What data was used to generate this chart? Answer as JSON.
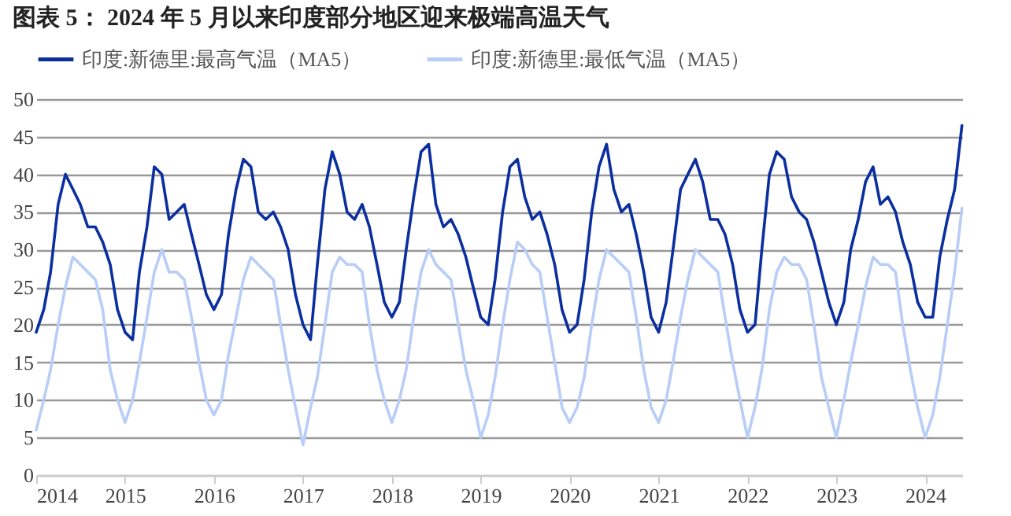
{
  "chart_data": {
    "type": "line",
    "title": "图表 5： 2024 年 5 月以来印度部分地区迎来极端高温天气",
    "x": [
      "2014-01",
      "2014-02",
      "2014-03",
      "2014-04",
      "2014-05",
      "2014-06",
      "2014-07",
      "2014-08",
      "2014-09",
      "2014-10",
      "2014-11",
      "2014-12",
      "2015-01",
      "2015-02",
      "2015-03",
      "2015-04",
      "2015-05",
      "2015-06",
      "2015-07",
      "2015-08",
      "2015-09",
      "2015-10",
      "2015-11",
      "2015-12",
      "2016-01",
      "2016-02",
      "2016-03",
      "2016-04",
      "2016-05",
      "2016-06",
      "2016-07",
      "2016-08",
      "2016-09",
      "2016-10",
      "2016-11",
      "2016-12",
      "2017-01",
      "2017-02",
      "2017-03",
      "2017-04",
      "2017-05",
      "2017-06",
      "2017-07",
      "2017-08",
      "2017-09",
      "2017-10",
      "2017-11",
      "2017-12",
      "2018-01",
      "2018-02",
      "2018-03",
      "2018-04",
      "2018-05",
      "2018-06",
      "2018-07",
      "2018-08",
      "2018-09",
      "2018-10",
      "2018-11",
      "2018-12",
      "2019-01",
      "2019-02",
      "2019-03",
      "2019-04",
      "2019-05",
      "2019-06",
      "2019-07",
      "2019-08",
      "2019-09",
      "2019-10",
      "2019-11",
      "2019-12",
      "2020-01",
      "2020-02",
      "2020-03",
      "2020-04",
      "2020-05",
      "2020-06",
      "2020-07",
      "2020-08",
      "2020-09",
      "2020-10",
      "2020-11",
      "2020-12",
      "2021-01",
      "2021-02",
      "2021-03",
      "2021-04",
      "2021-05",
      "2021-06",
      "2021-07",
      "2021-08",
      "2021-09",
      "2021-10",
      "2021-11",
      "2021-12",
      "2022-01",
      "2022-02",
      "2022-03",
      "2022-04",
      "2022-05",
      "2022-06",
      "2022-07",
      "2022-08",
      "2022-09",
      "2022-10",
      "2022-11",
      "2022-12",
      "2023-01",
      "2023-02",
      "2023-03",
      "2023-04",
      "2023-05",
      "2023-06",
      "2023-07",
      "2023-08",
      "2023-09",
      "2023-10",
      "2023-11",
      "2023-12",
      "2024-01",
      "2024-02",
      "2024-03",
      "2024-04",
      "2024-05",
      "2024-05-31"
    ],
    "series": [
      {
        "name": "印度:新德里:最高气温（MA5）",
        "color": "#0b2f9f",
        "values": [
          19,
          22,
          27,
          36,
          40,
          38,
          36,
          33,
          33,
          31,
          28,
          22,
          19,
          18,
          27,
          33,
          41,
          40,
          34,
          35,
          36,
          32,
          28,
          24,
          22,
          24,
          32,
          38,
          42,
          41,
          35,
          34,
          35,
          33,
          30,
          24,
          20,
          18,
          28,
          38,
          43,
          40,
          35,
          34,
          36,
          33,
          28,
          23,
          21,
          23,
          30,
          37,
          43,
          44,
          36,
          33,
          34,
          32,
          29,
          25,
          21,
          20,
          26,
          35,
          41,
          42,
          37,
          34,
          35,
          32,
          28,
          22,
          19,
          20,
          26,
          35,
          41,
          44,
          38,
          35,
          36,
          32,
          27,
          21,
          19,
          23,
          30,
          38,
          40,
          42,
          39,
          34,
          34,
          32,
          28,
          22,
          19,
          20,
          30,
          40,
          43,
          42,
          37,
          35,
          34,
          31,
          27,
          23,
          20,
          23,
          30,
          34,
          39,
          41,
          36,
          37,
          35,
          31,
          28,
          23,
          21,
          21,
          29,
          34,
          38,
          46.5
        ]
      },
      {
        "name": "印度:新德里:最低气温（MA5）",
        "color": "#b8cdf7",
        "values": [
          6,
          10,
          14,
          20,
          25,
          29,
          28,
          27,
          26,
          22,
          14,
          10,
          7,
          10,
          15,
          21,
          27,
          30,
          27,
          27,
          26,
          21,
          15,
          10,
          8,
          10,
          16,
          21,
          26,
          29,
          28,
          27,
          26,
          20,
          14,
          9,
          4,
          9,
          13,
          20,
          27,
          29,
          28,
          28,
          27,
          20,
          14,
          10,
          7,
          10,
          14,
          21,
          27,
          30,
          28,
          27,
          26,
          20,
          14,
          10,
          5,
          8,
          13,
          20,
          26,
          31,
          30,
          28,
          27,
          21,
          15,
          9,
          7,
          9,
          13,
          20,
          26,
          30,
          29,
          28,
          27,
          21,
          14,
          9,
          7,
          10,
          15,
          21,
          26,
          30,
          29,
          28,
          27,
          21,
          15,
          10,
          5,
          9,
          14,
          22,
          27,
          29,
          28,
          28,
          26,
          20,
          13,
          9,
          5,
          10,
          15,
          20,
          25,
          29,
          28,
          28,
          27,
          20,
          14,
          9,
          5,
          8,
          13,
          20,
          27,
          35.5
        ]
      }
    ],
    "xlim": [
      "2014-01-01",
      "2024-06-01"
    ],
    "xticks": [
      "2014",
      "2015",
      "2016",
      "2017",
      "2018",
      "2019",
      "2020",
      "2021",
      "2022",
      "2023",
      "2024"
    ],
    "ylim": [
      0,
      50
    ],
    "yticks": [
      0,
      5,
      10,
      15,
      20,
      25,
      30,
      35,
      40,
      45,
      50
    ],
    "grid": "y",
    "legend": "top",
    "marker": "none",
    "line_style": "solid"
  }
}
